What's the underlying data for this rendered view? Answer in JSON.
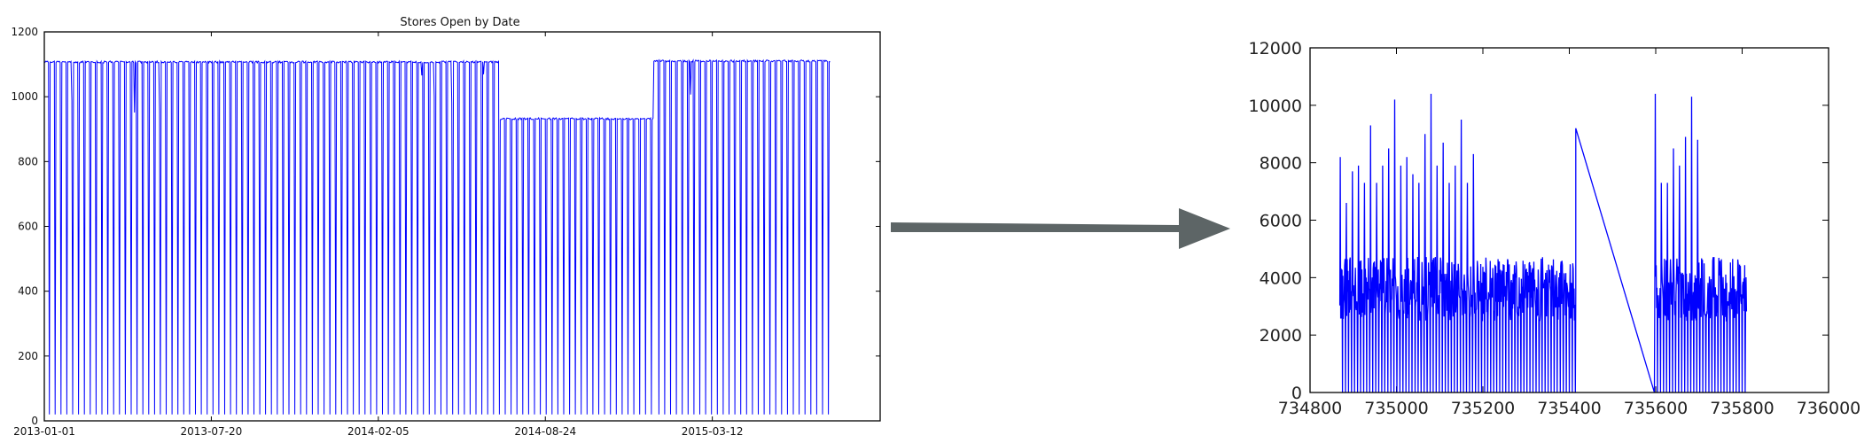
{
  "colors": {
    "series": "#0000ff",
    "arrow": "#5d6566",
    "axis": "#000000",
    "background": "#ffffff"
  },
  "arrow": {
    "icon": "arrow-right-icon"
  },
  "chart_data": [
    {
      "type": "line",
      "title": "Stores Open by Date",
      "xlabel": "",
      "ylabel": "",
      "x_axis_type": "date",
      "xlim": [
        "2013-01-01",
        "2015-09-29"
      ],
      "ylim": [
        0,
        1200
      ],
      "yticks": [
        0,
        200,
        400,
        600,
        800,
        1000,
        1200
      ],
      "xtick_labels": [
        "2013-01-01",
        "2013-07-20",
        "2014-02-05",
        "2014-08-24",
        "2015-03-12"
      ],
      "grid": false,
      "series": [
        {
          "pattern": "daily count; drops near zero on each weekly closure day",
          "segments": [
            {
              "start": "2013-01-01",
              "end": "2014-06-30",
              "open_level": 1110,
              "closed_level": 20
            },
            {
              "start": "2014-07-01",
              "end": "2014-12-31",
              "open_level": 935,
              "closed_level": 20
            },
            {
              "start": "2015-01-01",
              "end": "2015-07-31",
              "open_level": 1113,
              "closed_level": 20
            }
          ]
        }
      ]
    },
    {
      "type": "line",
      "title": "",
      "xlabel": "",
      "ylabel": "",
      "xlim": [
        734800,
        736000
      ],
      "ylim": [
        0,
        12000
      ],
      "xticks": [
        734800,
        735000,
        735200,
        735400,
        735600,
        735800,
        736000
      ],
      "yticks": [
        0,
        2000,
        4000,
        6000,
        8000,
        10000,
        12000
      ],
      "grid": false,
      "series": [
        {
          "pattern": "dense daily spikes; straight line across gap",
          "segments": [
            {
              "x_start": 734869,
              "x_end": 735415,
              "baseline": 0,
              "typical": 4500,
              "peaks": [
                8200,
                6600,
                7700,
                7900,
                7300,
                9300,
                7300,
                7900,
                8500,
                10200,
                7900,
                8200,
                7600,
                7300,
                9000,
                10400,
                7900,
                8700,
                7300,
                7900,
                9500,
                7300,
                8300
              ]
            },
            {
              "x_start": 735415,
              "x_end": 735597,
              "gap_line": [
                9200,
                0
              ]
            },
            {
              "x_start": 735598,
              "x_end": 735810,
              "baseline": 0,
              "typical": 4500,
              "peaks": [
                10400,
                7300,
                7300,
                8500,
                7900,
                8900,
                10300,
                8800
              ]
            }
          ]
        }
      ]
    }
  ]
}
